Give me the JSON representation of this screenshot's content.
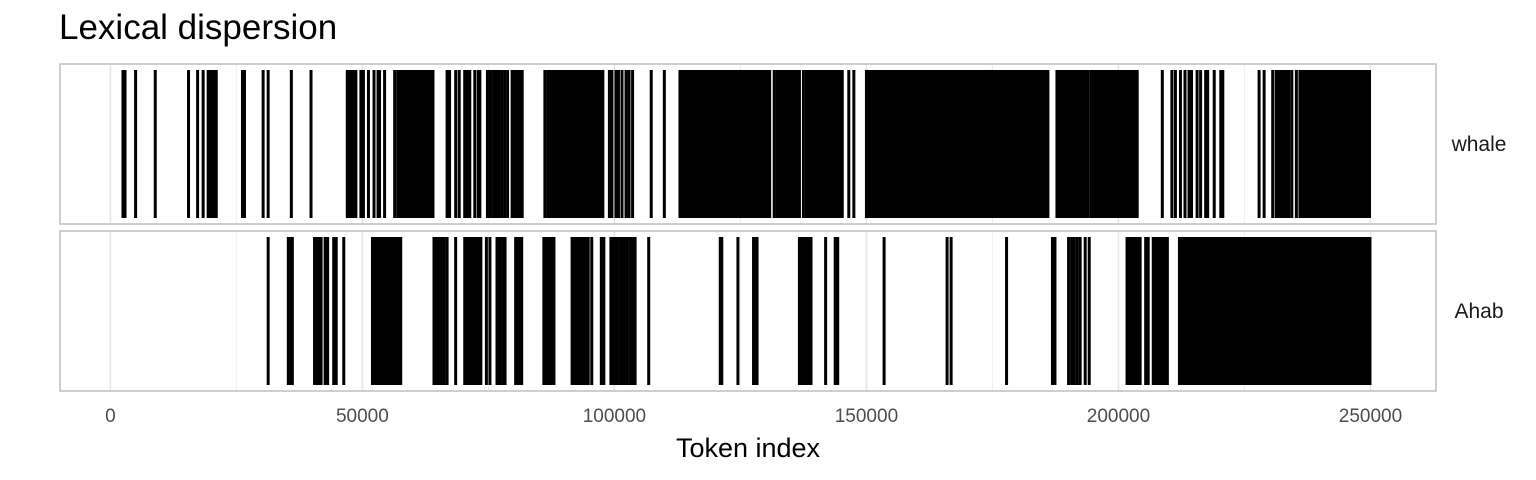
{
  "title": "Lexical dispersion",
  "chart_data": {
    "type": "dispersion",
    "title": "Lexical dispersion",
    "xlabel": "Token index",
    "ylabel": "",
    "xlim": [
      -10000,
      263000
    ],
    "x_ticks": [
      0,
      50000,
      100000,
      150000,
      200000,
      250000
    ],
    "x_tick_labels": [
      "0",
      "50000",
      "100000",
      "150000",
      "200000",
      "250000"
    ],
    "grid": true,
    "panels": [
      {
        "label": "whale",
        "dense_ranges": [
          [
            57000,
            64000
          ],
          [
            86500,
            98000
          ],
          [
            113500,
            125000
          ],
          [
            126000,
            131000
          ],
          [
            132000,
            137000
          ],
          [
            137800,
            142000
          ],
          [
            142300,
            145000
          ],
          [
            150000,
            186000
          ],
          [
            187500,
            194000
          ],
          [
            194500,
            204000
          ],
          [
            236000,
            250000
          ]
        ],
        "positions": [
          2500,
          2900,
          5000,
          8900,
          15500,
          17300,
          18400,
          19400,
          19700,
          20200,
          20500,
          21000,
          26200,
          26600,
          30300,
          31300,
          35900,
          39800,
          47000,
          47400,
          47800,
          48300,
          48700,
          49700,
          50200,
          51200,
          52300,
          53100,
          53400,
          54400,
          56400,
          57000,
          57300,
          57700,
          58000,
          58400,
          58800,
          59200,
          59600,
          60000,
          60400,
          60800,
          61200,
          61700,
          62100,
          62500,
          62900,
          63300,
          63700,
          64000,
          66800,
          67300,
          68500,
          69200,
          70300,
          70800,
          71300,
          72300,
          73000,
          73300,
          74800,
          75300,
          75600,
          76200,
          76700,
          77000,
          77600,
          78200,
          78800,
          79700,
          80200,
          80700,
          81200,
          81700,
          86200,
          86800,
          87400,
          88000,
          88600,
          89200,
          89800,
          90400,
          91000,
          91600,
          92200,
          92800,
          93400,
          94000,
          94600,
          95200,
          95800,
          96400,
          97000,
          97600,
          99000,
          99500,
          100300,
          100800,
          101500,
          102300,
          102900,
          103600,
          107300,
          109900,
          113000,
          113500,
          114100,
          114700,
          115300,
          115900,
          116500,
          117100,
          117700,
          118300,
          118900,
          119500,
          120100,
          120700,
          121300,
          121900,
          122500,
          123100,
          123700,
          124300,
          124900,
          125400,
          125900,
          126500,
          127100,
          127700,
          128300,
          128900,
          129500,
          130100,
          130800,
          131700,
          132300,
          132900,
          133500,
          134100,
          134700,
          135300,
          135900,
          136600,
          137500,
          138100,
          138700,
          139300,
          139900,
          140500,
          141100,
          141700,
          142200,
          142800,
          143400,
          144000,
          144600,
          145200,
          146500,
          147500,
          150000,
          150600,
          151200,
          151800,
          152400,
          153000,
          153600,
          154200,
          154800,
          155400,
          156000,
          156600,
          157200,
          157800,
          158400,
          159000,
          159600,
          160200,
          160800,
          161400,
          162000,
          162600,
          163200,
          163800,
          164400,
          165000,
          165600,
          166200,
          166800,
          167400,
          168000,
          168600,
          169200,
          169800,
          170400,
          171000,
          171600,
          172200,
          172800,
          173400,
          174000,
          174600,
          175200,
          175800,
          176400,
          177000,
          177600,
          178200,
          178800,
          179400,
          180000,
          180600,
          181200,
          181800,
          182400,
          183000,
          183600,
          184200,
          184800,
          185400,
          186000,
          188000,
          188600,
          189200,
          189800,
          190400,
          191000,
          191600,
          192200,
          192800,
          193400,
          194000,
          194600,
          195200,
          195800,
          196400,
          197000,
          197600,
          198200,
          198800,
          199400,
          200000,
          200600,
          201200,
          201800,
          202400,
          203000,
          203700,
          208700,
          210600,
          211300,
          212300,
          213200,
          214000,
          214500,
          215600,
          216300,
          217300,
          217700,
          219000,
          220300,
          220700,
          227900,
          228900,
          230600,
          231300,
          231800,
          232300,
          232800,
          233300,
          233800,
          234400,
          235300,
          236000,
          236600,
          237200,
          237800,
          238400,
          239000,
          239600,
          240200,
          240800,
          241400,
          242000,
          242600,
          243200,
          243800,
          244400,
          245000,
          245600,
          246200,
          246800,
          247400,
          248000,
          248600,
          249200,
          249800
        ]
      },
      {
        "label": "Ahab",
        "dense_ranges": [
          [
            201500,
            204500
          ],
          [
            207000,
            210000
          ],
          [
            212000,
            250000
          ]
        ],
        "positions": [
          31300,
          35300,
          35700,
          36100,
          40500,
          40900,
          41300,
          41800,
          42600,
          43100,
          44300,
          44800,
          46300,
          52000,
          52400,
          52800,
          53200,
          53600,
          54000,
          54400,
          54800,
          55200,
          55600,
          56000,
          56400,
          56800,
          57200,
          57600,
          64200,
          64600,
          65000,
          65400,
          65800,
          66200,
          66800,
          68500,
          70300,
          70700,
          71100,
          71500,
          71900,
          72300,
          72700,
          73100,
          73500,
          74600,
          75300,
          76700,
          77200,
          77800,
          78300,
          80400,
          80800,
          81200,
          81600,
          86000,
          86400,
          86800,
          87200,
          87600,
          88000,
          91600,
          92000,
          92400,
          92800,
          93200,
          93600,
          94000,
          94400,
          94800,
          95500,
          97400,
          97900,
          99300,
          99800,
          100300,
          100800,
          101400,
          101900,
          102500,
          103100,
          103600,
          104100,
          106800,
          121000,
          121300,
          124500,
          127600,
          127900,
          128300,
          136700,
          137100,
          137500,
          138000,
          138500,
          139000,
          141900,
          143800,
          144300,
          153500,
          166000,
          166800,
          177800,
          186900,
          187400,
          190100,
          190700,
          191200,
          191800,
          192400,
          193400,
          194200,
          201700,
          202200,
          202700,
          203200,
          203800,
          204300,
          205400,
          205900,
          206900,
          207500,
          208200,
          208800,
          209500,
          212100,
          212700,
          213300,
          213900,
          214500,
          215100,
          215700,
          216300,
          216900,
          217500,
          218100,
          218700,
          219300,
          219900,
          220500,
          221100,
          221700,
          222300,
          222900,
          223500,
          224100,
          224700,
          225300,
          225900,
          226500,
          227100,
          227700,
          228300,
          228900,
          229500,
          230100,
          230700,
          231300,
          231900,
          232500,
          233100,
          233700,
          234300,
          234900,
          235500,
          236100,
          236700,
          237300,
          237900,
          238500,
          239100,
          239700,
          240300,
          240900,
          241500,
          242100,
          242700,
          243300,
          243900,
          244500,
          245100,
          245700,
          246300,
          246900,
          247500,
          248100,
          248700,
          249300,
          249900
        ]
      }
    ]
  }
}
